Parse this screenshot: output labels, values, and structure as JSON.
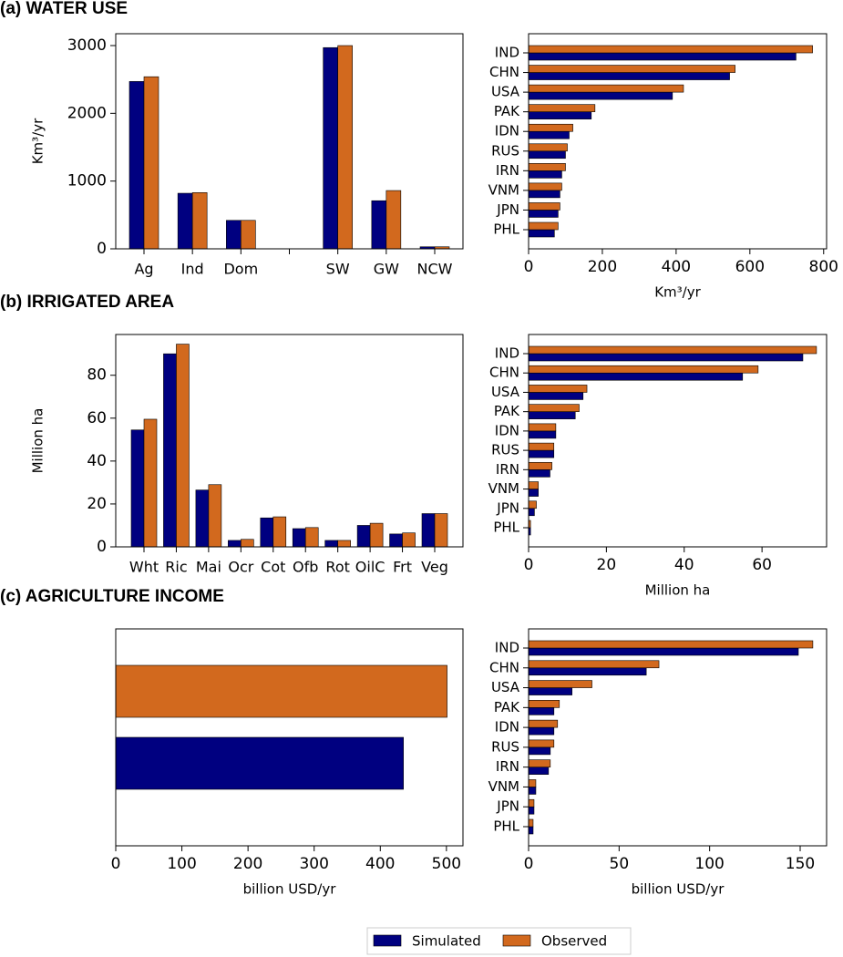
{
  "chart_data": [
    {
      "type": "bar",
      "title": "(a) WATER USE",
      "ylabel": "Km³/yr",
      "categories": [
        "Ag",
        "Ind",
        "Dom",
        null,
        "SW",
        "GW",
        "NCW"
      ],
      "series": [
        {
          "name": "Simulated",
          "color": "#000080",
          "values": [
            2470,
            820,
            420,
            null,
            2970,
            710,
            30
          ]
        },
        {
          "name": "Observed",
          "color": "#d2691e",
          "values": [
            2540,
            830,
            420,
            null,
            3000,
            860,
            30
          ]
        }
      ],
      "ylim": [
        0,
        3175
      ],
      "yticks": [
        0,
        1000,
        2000,
        3000
      ]
    },
    {
      "type": "barh",
      "xlabel": "Km³/yr",
      "categories": [
        "IND",
        "CHN",
        "USA",
        "PAK",
        "IDN",
        "RUS",
        "IRN",
        "VNM",
        "JPN",
        "PHL"
      ],
      "series": [
        {
          "name": "Simulated",
          "color": "#000080",
          "values": [
            725,
            545,
            390,
            170,
            110,
            100,
            90,
            85,
            80,
            70
          ]
        },
        {
          "name": "Observed",
          "color": "#d2691e",
          "values": [
            770,
            560,
            420,
            180,
            120,
            105,
            100,
            90,
            85,
            80
          ]
        }
      ],
      "xlim": [
        0,
        808
      ],
      "xticks": [
        0,
        200,
        400,
        600,
        800
      ]
    },
    {
      "type": "bar",
      "title": "(b) IRRIGATED AREA",
      "ylabel": "Million ha",
      "categories": [
        "Wht",
        "Ric",
        "Mai",
        "Ocr",
        "Cot",
        "Ofb",
        "Rot",
        "OilC",
        "Frt",
        "Veg"
      ],
      "series": [
        {
          "name": "Simulated",
          "color": "#000080",
          "values": [
            54.5,
            90,
            26.5,
            3,
            13.5,
            8.5,
            3,
            10,
            6,
            15.5
          ]
        },
        {
          "name": "Observed",
          "color": "#d2691e",
          "values": [
            59.5,
            94.5,
            29,
            3.5,
            14,
            9,
            3,
            11,
            6.5,
            15.5
          ]
        }
      ],
      "ylim": [
        0,
        99
      ],
      "yticks": [
        0,
        20,
        40,
        60,
        80
      ]
    },
    {
      "type": "barh",
      "xlabel": "Million ha",
      "categories": [
        "IND",
        "CHN",
        "USA",
        "PAK",
        "IDN",
        "RUS",
        "IRN",
        "VNM",
        "JPN",
        "PHL"
      ],
      "series": [
        {
          "name": "Simulated",
          "color": "#000080",
          "values": [
            70.5,
            55,
            14,
            12,
            7,
            6.5,
            5.5,
            2.5,
            1.5,
            0.5
          ]
        },
        {
          "name": "Observed",
          "color": "#d2691e",
          "values": [
            74,
            59,
            15,
            13,
            7,
            6.5,
            6,
            2.5,
            2,
            0.5
          ]
        }
      ],
      "xlim": [
        0,
        76.6
      ],
      "xticks": [
        0,
        20,
        40,
        60
      ]
    },
    {
      "type": "barh",
      "title": "(c) AGRICULTURE INCOME",
      "xlabel": "billion USD/yr",
      "categories": [
        null
      ],
      "series": [
        {
          "name": "Simulated",
          "color": "#000080",
          "values": [
            435
          ]
        },
        {
          "name": "Observed",
          "color": "#d2691e",
          "values": [
            501
          ]
        }
      ],
      "xlim": [
        0,
        525
      ],
      "xticks": [
        0,
        100,
        200,
        300,
        400,
        500
      ]
    },
    {
      "type": "barh",
      "xlabel": "billion USD/yr",
      "categories": [
        "IND",
        "CHN",
        "USA",
        "PAK",
        "IDN",
        "RUS",
        "IRN",
        "VNM",
        "JPN",
        "PHL"
      ],
      "series": [
        {
          "name": "Simulated",
          "color": "#000080",
          "values": [
            149,
            65,
            24,
            14,
            14,
            12,
            11,
            4,
            3,
            2.5
          ]
        },
        {
          "name": "Observed",
          "color": "#d2691e",
          "values": [
            157,
            72,
            35,
            17,
            16,
            14,
            12,
            4,
            3,
            2.5
          ]
        }
      ],
      "xlim": [
        0,
        164.6
      ],
      "xticks": [
        0,
        50,
        100,
        150
      ]
    }
  ]
}
